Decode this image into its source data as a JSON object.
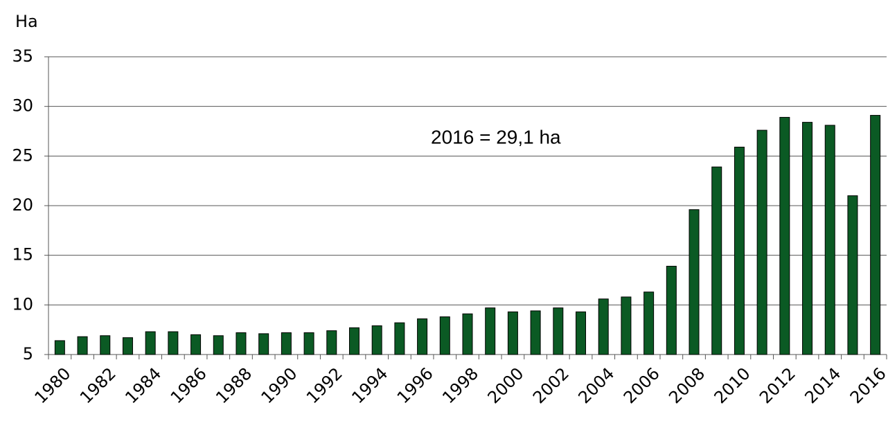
{
  "chart_data": {
    "type": "bar",
    "y_label": "Ha",
    "annotation": "2016 = 29,1 ha",
    "categories": [
      "1980",
      null,
      "1982",
      null,
      "1984",
      null,
      "1986",
      null,
      "1988",
      null,
      "1990",
      null,
      "1992",
      null,
      "1994",
      null,
      "1996",
      null,
      "1998",
      null,
      "2000",
      null,
      "2002",
      null,
      "2004",
      null,
      "2006",
      null,
      "2008",
      null,
      "2010",
      null,
      "2012",
      null,
      "2014",
      null,
      "2016"
    ],
    "values": [
      6.4,
      6.8,
      6.9,
      6.7,
      7.3,
      7.3,
      7.0,
      6.9,
      7.2,
      7.1,
      7.2,
      7.2,
      7.4,
      7.7,
      7.9,
      8.2,
      8.6,
      8.8,
      9.1,
      9.7,
      9.3,
      9.4,
      9.7,
      9.3,
      10.6,
      10.8,
      11.3,
      13.9,
      19.6,
      23.9,
      25.9,
      27.6,
      28.9,
      28.4,
      28.1,
      21.0,
      29.1
    ],
    "color": "#0b5a24",
    "ylim": [
      5,
      35
    ],
    "yticks": [
      5,
      10,
      15,
      20,
      25,
      30,
      35
    ],
    "grid": true
  }
}
